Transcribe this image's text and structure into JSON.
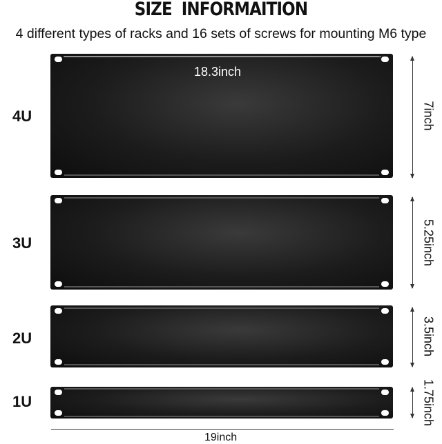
{
  "header": {
    "title": "SIZE   INFORMAITION",
    "subtitle": "4 different types of racks and 16 sets of screws for mounting M6 type"
  },
  "panels": [
    {
      "label": "4U",
      "height_label": "7inch"
    },
    {
      "label": "3U",
      "height_label": "5.25inch"
    },
    {
      "label": "2U",
      "height_label": "3.5inch"
    },
    {
      "label": "1U",
      "height_label": "1.75inch"
    }
  ],
  "dimensions": {
    "inner_width": "18.3inch",
    "outer_width": "19inch"
  },
  "colors": {
    "panel": "#1c1c1c",
    "text": "#111111"
  }
}
